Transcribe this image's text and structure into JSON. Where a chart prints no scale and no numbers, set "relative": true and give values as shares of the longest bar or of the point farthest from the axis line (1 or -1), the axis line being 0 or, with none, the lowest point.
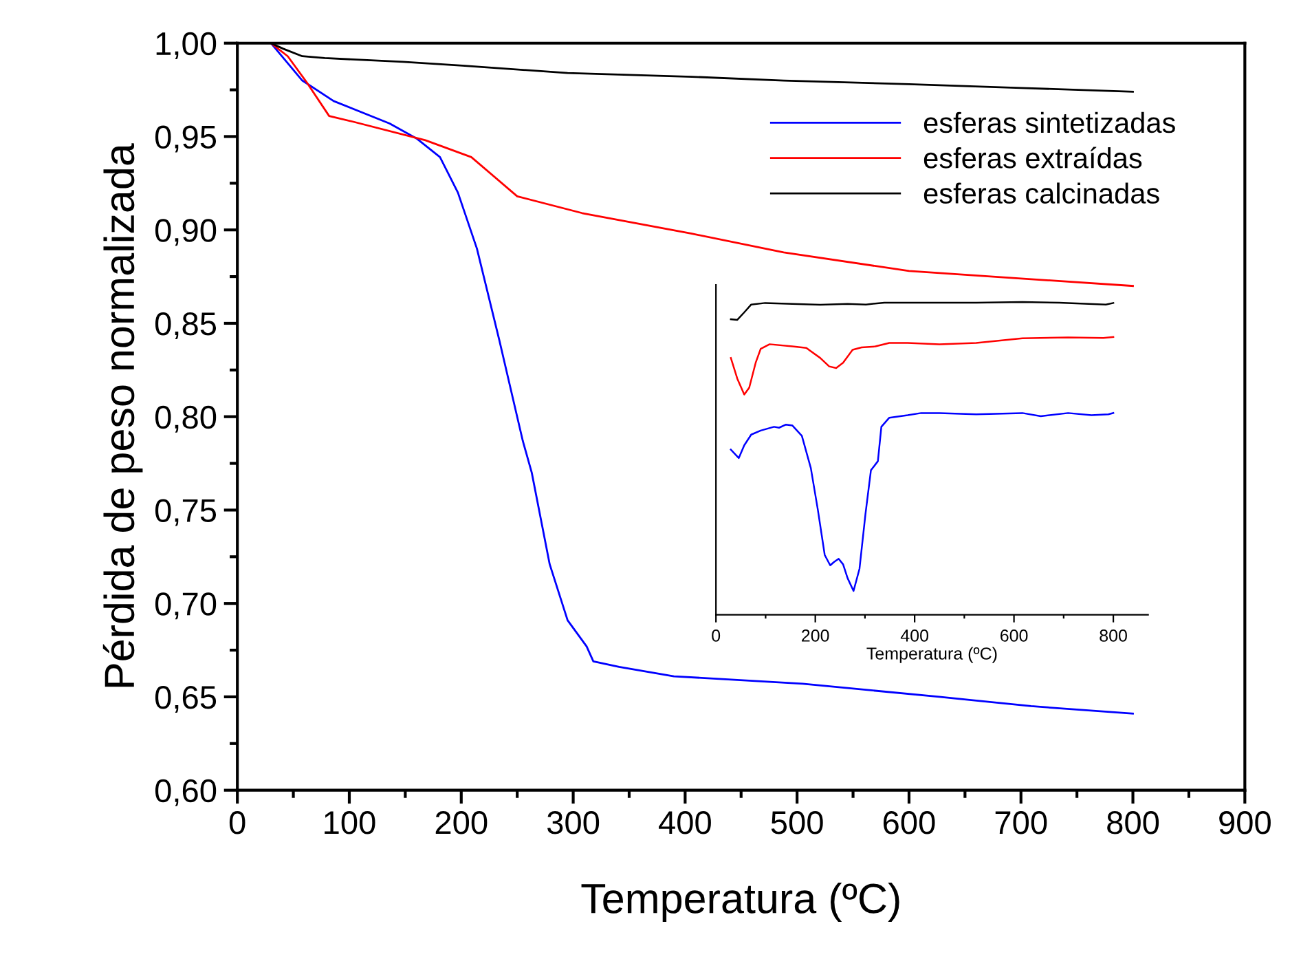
{
  "chart_data": [
    {
      "type": "line",
      "xlabel": "Temperatura (ºC)",
      "ylabel": "Pérdida de peso normalizada",
      "xlim": [
        0,
        900
      ],
      "ylim": [
        0.6,
        1.0
      ],
      "xticks": [
        0,
        100,
        200,
        300,
        400,
        500,
        600,
        700,
        800,
        900
      ],
      "yticks": [
        {
          "value": 0.6,
          "label": "0,60"
        },
        {
          "value": 0.65,
          "label": "0,65"
        },
        {
          "value": 0.7,
          "label": "0,70"
        },
        {
          "value": 0.75,
          "label": "0,75"
        },
        {
          "value": 0.8,
          "label": "0,80"
        },
        {
          "value": 0.85,
          "label": "0,85"
        },
        {
          "value": 0.9,
          "label": "0,90"
        },
        {
          "value": 0.95,
          "label": "0,95"
        },
        {
          "value": 1.0,
          "label": "1,00"
        }
      ],
      "legend": "top right",
      "grid": false,
      "marker": "none",
      "line_style": "solid",
      "series": [
        {
          "name": "esferas sintetizadas",
          "color": "#0000ff",
          "x": [
            30,
            58,
            86,
            136,
            160,
            181,
            197,
            214,
            234,
            255,
            263,
            279,
            295,
            312,
            318,
            341,
            390,
            505,
            627,
            709,
            800
          ],
          "values": [
            1.0,
            0.98,
            0.969,
            0.957,
            0.949,
            0.939,
            0.92,
            0.89,
            0.841,
            0.787,
            0.77,
            0.721,
            0.691,
            0.677,
            0.669,
            0.666,
            0.661,
            0.657,
            0.65,
            0.645,
            0.641
          ]
        },
        {
          "name": "esferas extraídas",
          "color": "#ff0000",
          "x": [
            30,
            45,
            62,
            82,
            103,
            168,
            209,
            250,
            308,
            406,
            488,
            600,
            700,
            800
          ],
          "values": [
            1.0,
            0.993,
            0.979,
            0.961,
            0.958,
            0.948,
            0.939,
            0.918,
            0.909,
            0.898,
            0.888,
            0.878,
            0.874,
            0.87
          ]
        },
        {
          "name": "esferas calcinadas",
          "color": "#000000",
          "x": [
            30,
            41,
            58,
            78,
            148,
            201,
            295,
            406,
            488,
            600,
            700,
            800
          ],
          "values": [
            1.0,
            0.997,
            0.993,
            0.992,
            0.99,
            0.988,
            0.984,
            0.982,
            0.98,
            0.978,
            0.976,
            0.974
          ]
        }
      ]
    },
    {
      "type": "line",
      "xlabel": "Temperatura (ºC)",
      "xlim": [
        0,
        870
      ],
      "xticks": [
        0,
        200,
        400,
        600,
        800
      ],
      "relative": true,
      "tick_labels": "x",
      "grid": false,
      "legend": false,
      "marker": "none",
      "line_style": "solid",
      "series": [
        {
          "color": "#000000",
          "x": [
            30,
            43,
            57,
            71,
            99,
            154,
            210,
            265,
            302,
            339,
            432,
            524,
            617,
            691,
            785,
            800
          ],
          "values": [
            0.945,
            0.943,
            0.967,
            0.992,
            0.997,
            0.994,
            0.991,
            0.994,
            0.992,
            0.998,
            0.998,
            0.998,
            1.0,
            0.998,
            0.992,
            0.997
          ]
        },
        {
          "color": "#ff0000",
          "x": [
            30,
            43,
            57,
            67,
            80,
            90,
            108,
            154,
            182,
            210,
            228,
            242,
            256,
            275,
            293,
            321,
            349,
            386,
            450,
            524,
            617,
            709,
            780,
            800
          ],
          "values": [
            0.821,
            0.755,
            0.704,
            0.726,
            0.806,
            0.85,
            0.865,
            0.858,
            0.853,
            0.821,
            0.794,
            0.789,
            0.806,
            0.847,
            0.855,
            0.858,
            0.869,
            0.869,
            0.865,
            0.869,
            0.884,
            0.887,
            0.885,
            0.888
          ]
        },
        {
          "color": "#0000ff",
          "x": [
            30,
            46,
            57,
            71,
            90,
            117,
            127,
            141,
            154,
            173,
            191,
            205,
            219,
            230,
            238,
            247,
            256,
            265,
            277,
            289,
            301,
            312,
            326,
            333,
            349,
            386,
            413,
            450,
            524,
            617,
            654,
            709,
            756,
            790,
            800
          ],
          "values": [
            0.528,
            0.501,
            0.542,
            0.576,
            0.589,
            0.601,
            0.598,
            0.608,
            0.605,
            0.572,
            0.469,
            0.337,
            0.191,
            0.158,
            0.169,
            0.179,
            0.161,
            0.117,
            0.076,
            0.147,
            0.322,
            0.462,
            0.491,
            0.601,
            0.63,
            0.638,
            0.645,
            0.645,
            0.641,
            0.645,
            0.635,
            0.645,
            0.638,
            0.641,
            0.645
          ]
        }
      ]
    }
  ]
}
